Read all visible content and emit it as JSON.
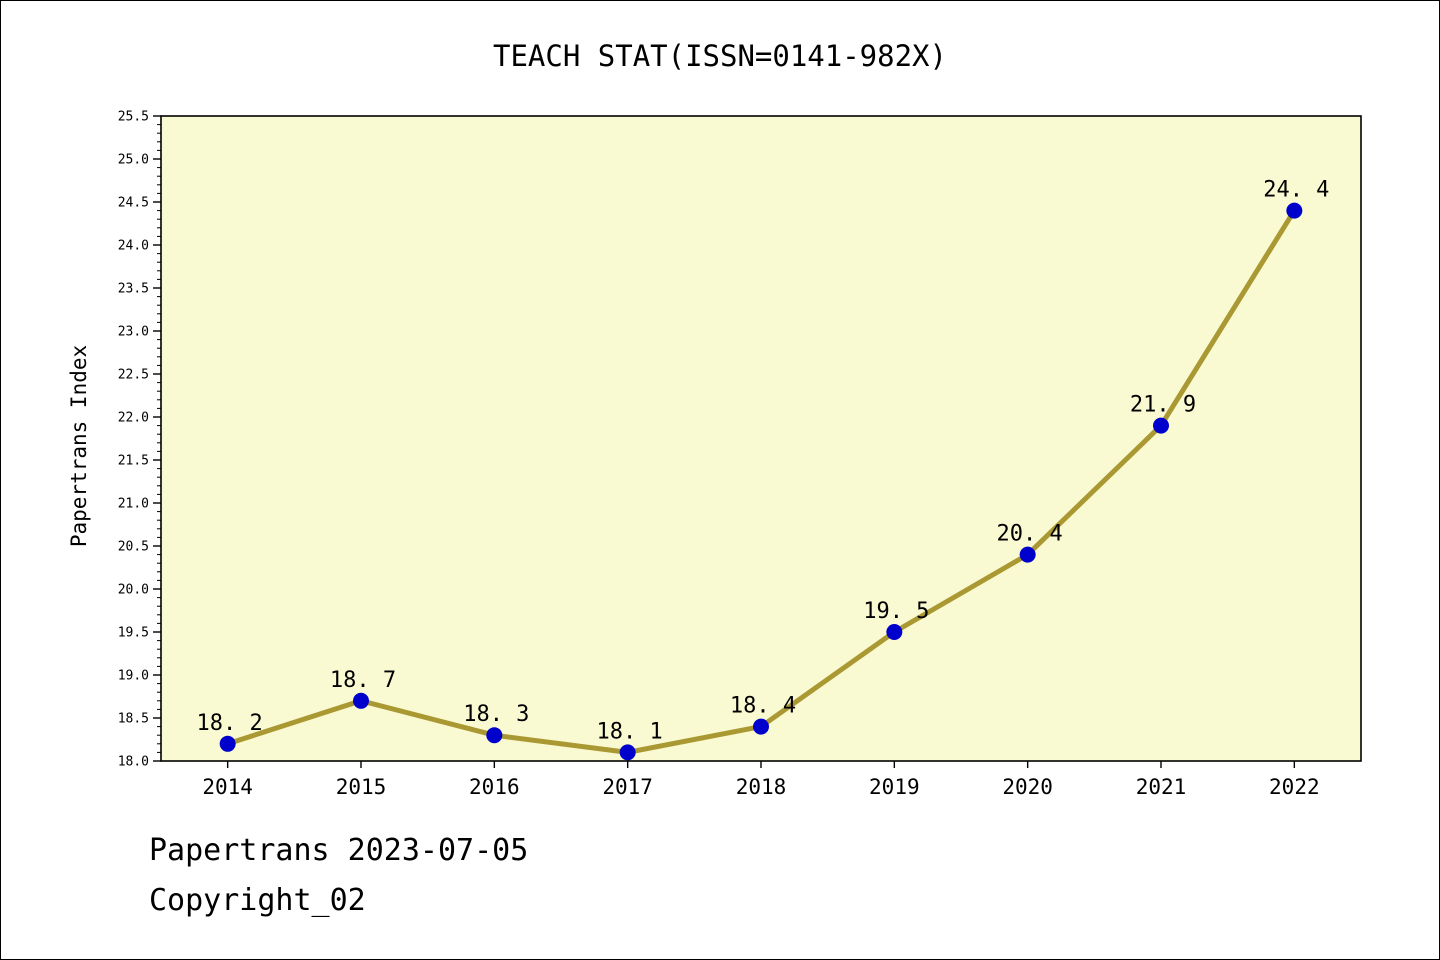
{
  "page": {
    "footer": {
      "line1": "Papertrans 2023-07-05",
      "line2": "Copyright_02"
    }
  },
  "chart_data": {
    "type": "line",
    "title": "TEACH STAT(ISSN=0141-982X)",
    "categories": [
      "2014",
      "2015",
      "2016",
      "2017",
      "2018",
      "2019",
      "2020",
      "2021",
      "2022"
    ],
    "values": [
      18.2,
      18.7,
      18.3,
      18.1,
      18.4,
      19.5,
      20.4,
      21.9,
      24.4
    ],
    "point_labels": [
      "18. 2",
      "18. 7",
      "18. 3",
      "18. 1",
      "18. 4",
      "19. 5",
      "20. 4",
      "21. 9",
      "24. 4"
    ],
    "xlabel": "",
    "ylabel": "Papertrans Index",
    "ylim": [
      18.0,
      25.5
    ],
    "y_major_step": 0.5,
    "y_minor_step": 0.1,
    "grid": false,
    "legend": "none",
    "colors": {
      "plot_background": "#FAFAD2",
      "line": "#AA9933",
      "point": "#0000CC",
      "axis": "#000000",
      "text": "#000000"
    }
  }
}
